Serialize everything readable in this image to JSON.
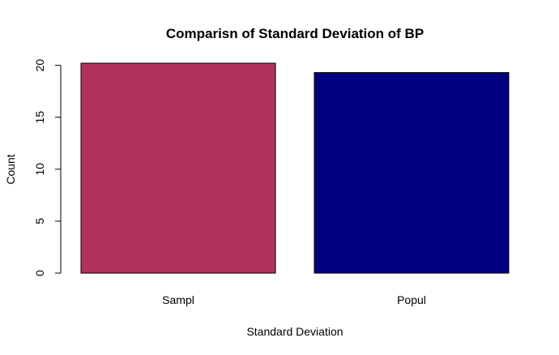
{
  "chart_data": {
    "type": "bar",
    "title": "Comparisn of Standard Deviation of BP",
    "xlabel": "Standard Deviation",
    "ylabel": "Count",
    "categories": [
      "Sampl",
      "Popul"
    ],
    "values": [
      20.2,
      19.3
    ],
    "colors": [
      "#B0335E",
      "#000080"
    ],
    "yticks": [
      0,
      5,
      10,
      15,
      20
    ],
    "ylim": [
      0,
      20.2
    ],
    "grid": false,
    "legend": "none"
  }
}
